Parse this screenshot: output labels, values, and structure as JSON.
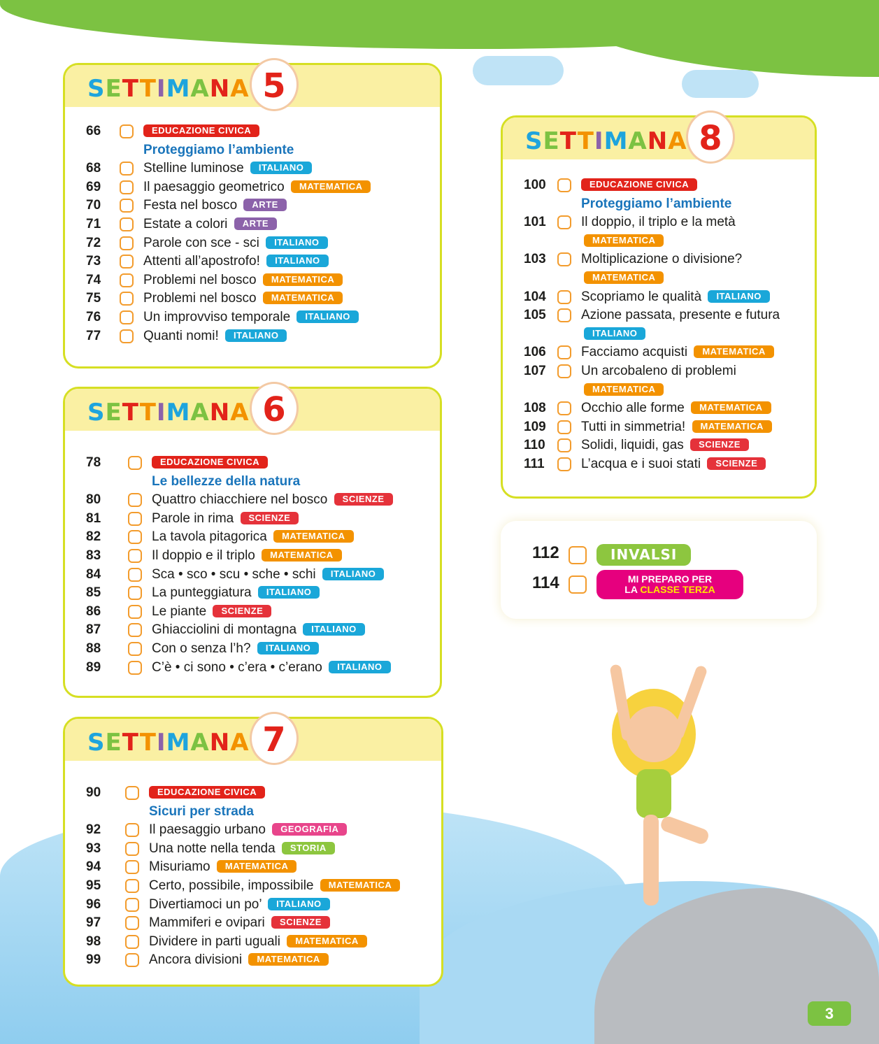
{
  "week_label": "SETTIMANA",
  "week_letter_colors": [
    "#1ea4dd",
    "#7cc242",
    "#e2231a",
    "#f39200",
    "#8c62aa",
    "#1ea4dd",
    "#7cc242",
    "#e2231a",
    "#f39200"
  ],
  "subject_colors": {
    "EDUCAZIONE CIVICA": "#e2231a",
    "ITALIANO": "#1aa7d9",
    "MATEMATICA": "#f39200",
    "ARTE": "#8c62aa",
    "SCIENZE": "#e5323a",
    "GEOGRAFIA": "#e8458b",
    "STORIA": "#8dc63f"
  },
  "weeks": [
    {
      "number": "5",
      "items": [
        {
          "page": "66",
          "title": "",
          "subject": "EDUCAZIONE CIVICA"
        },
        {
          "page": "",
          "title": "Proteggiamo l’ambiente",
          "subject": "",
          "subtitle": true
        },
        {
          "page": "68",
          "title": "Stelline luminose",
          "subject": "ITALIANO"
        },
        {
          "page": "69",
          "title": "Il paesaggio geometrico",
          "subject": "MATEMATICA"
        },
        {
          "page": "70",
          "title": "Festa nel bosco",
          "subject": "ARTE"
        },
        {
          "page": "71",
          "title": "Estate a colori",
          "subject": "ARTE"
        },
        {
          "page": "72",
          "title": "Parole con sce - sci",
          "subject": "ITALIANO"
        },
        {
          "page": "73",
          "title": "Attenti all’apostrofo!",
          "subject": "ITALIANO"
        },
        {
          "page": "74",
          "title": "Problemi nel bosco",
          "subject": "MATEMATICA"
        },
        {
          "page": "75",
          "title": "Problemi nel bosco",
          "subject": "MATEMATICA"
        },
        {
          "page": "76",
          "title": "Un improvviso temporale",
          "subject": "ITALIANO"
        },
        {
          "page": "77",
          "title": "Quanti nomi!",
          "subject": "ITALIANO"
        }
      ]
    },
    {
      "number": "6",
      "items": [
        {
          "page": "78",
          "title": "",
          "subject": "EDUCAZIONE CIVICA"
        },
        {
          "page": "",
          "title": "Le bellezze della natura",
          "subject": "",
          "subtitle": true
        },
        {
          "page": "80",
          "title": "Quattro chiacchiere nel bosco",
          "subject": "SCIENZE"
        },
        {
          "page": "81",
          "title": "Parole in rima",
          "subject": "SCIENZE"
        },
        {
          "page": "82",
          "title": "La tavola pitagorica",
          "subject": "MATEMATICA"
        },
        {
          "page": "83",
          "title": "Il doppio e il triplo",
          "subject": "MATEMATICA"
        },
        {
          "page": "84",
          "title": "Sca • sco • scu • sche • schi",
          "subject": "ITALIANO"
        },
        {
          "page": "85",
          "title": "La punteggiatura",
          "subject": "ITALIANO"
        },
        {
          "page": "86",
          "title": "Le piante",
          "subject": "SCIENZE"
        },
        {
          "page": "87",
          "title": "Ghiacciolini di montagna",
          "subject": "ITALIANO"
        },
        {
          "page": "88",
          "title": "Con o senza l’h?",
          "subject": "ITALIANO"
        },
        {
          "page": "89",
          "title": "C’è • ci sono • c’era • c’erano",
          "subject": "ITALIANO"
        }
      ]
    },
    {
      "number": "7",
      "items": [
        {
          "page": "90",
          "title": "",
          "subject": "EDUCAZIONE CIVICA"
        },
        {
          "page": "",
          "title": "Sicuri per strada",
          "subject": "",
          "subtitle": true
        },
        {
          "page": "92",
          "title": "Il paesaggio urbano",
          "subject": "GEOGRAFIA"
        },
        {
          "page": "93",
          "title": "Una notte nella tenda",
          "subject": "STORIA"
        },
        {
          "page": "94",
          "title": "Misuriamo",
          "subject": "MATEMATICA"
        },
        {
          "page": "95",
          "title": "Certo, possibile, impossibile",
          "subject": "MATEMATICA"
        },
        {
          "page": "96",
          "title": "Divertiamoci un po’",
          "subject": "ITALIANO"
        },
        {
          "page": "97",
          "title": "Mammiferi e ovipari",
          "subject": "SCIENZE"
        },
        {
          "page": "98",
          "title": "Dividere in parti uguali",
          "subject": "MATEMATICA"
        },
        {
          "page": "99",
          "title": "Ancora divisioni",
          "subject": "MATEMATICA"
        }
      ]
    },
    {
      "number": "8",
      "items": [
        {
          "page": "100",
          "title": "",
          "subject": "EDUCAZIONE CIVICA"
        },
        {
          "page": "",
          "title": "Proteggiamo l’ambiente",
          "subject": "",
          "subtitle": true
        },
        {
          "page": "101",
          "title": "Il doppio, il triplo e la metà",
          "subject": "MATEMATICA"
        },
        {
          "page": "103",
          "title": "Moltiplicazione o divisione?",
          "subject": "MATEMATICA"
        },
        {
          "page": "104",
          "title": "Scopriamo le qualità",
          "subject": "ITALIANO"
        },
        {
          "page": "105",
          "title": "Azione passata, presente e futura",
          "subject": "ITALIANO"
        },
        {
          "page": "106",
          "title": "Facciamo acquisti",
          "subject": "MATEMATICA"
        },
        {
          "page": "107",
          "title": "Un arcobaleno di problemi",
          "subject": "MATEMATICA"
        },
        {
          "page": "108",
          "title": "Occhio alle forme",
          "subject": "MATEMATICA"
        },
        {
          "page": "109",
          "title": "Tutti in simmetria!",
          "subject": "MATEMATICA"
        },
        {
          "page": "110",
          "title": "Solidi, liquidi, gas",
          "subject": "SCIENZE"
        },
        {
          "page": "111",
          "title": "L’acqua e i suoi stati",
          "subject": "SCIENZE"
        }
      ]
    }
  ],
  "extras": [
    {
      "page": "112",
      "label": "INVALSI"
    },
    {
      "page": "114",
      "label_line1": "MI PREPARO PER",
      "label_line2_a": "LA ",
      "label_line2_b": "CLASSE TERZA"
    }
  ],
  "page_number": "3"
}
